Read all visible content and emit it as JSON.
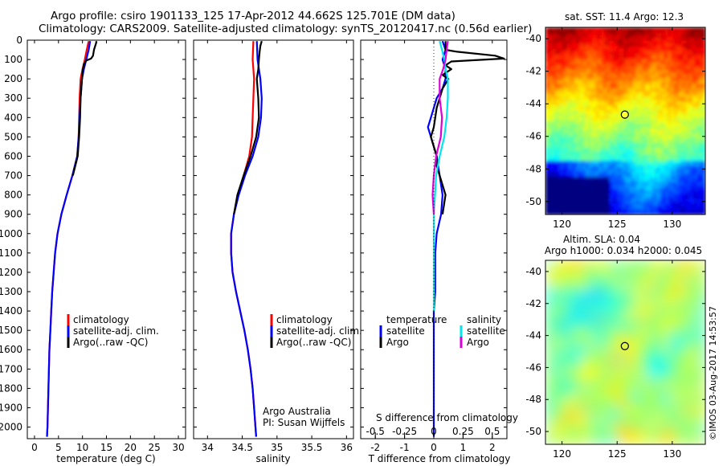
{
  "title": {
    "line1": "Argo profile: csiro 1901133_125 17-Apr-2012 44.662S 125.701E (DM data)",
    "line2": "Climatology: CARS2009. Satellite-adjusted climatology: synTS_20120417.nc (0.56d earlier)"
  },
  "colors": {
    "climatology": "#ff0000",
    "satellite": "#0000ff",
    "argo": "#000000",
    "sal_satellite": "#00e5ee",
    "sal_argo": "#dd00dd"
  },
  "depth_axis": {
    "ticks": [
      0,
      100,
      200,
      300,
      400,
      500,
      600,
      700,
      800,
      900,
      1000,
      1100,
      1200,
      1300,
      1400,
      1500,
      1600,
      1700,
      1800,
      1900,
      2000
    ],
    "range": [
      0,
      2060
    ]
  },
  "chart_data": [
    {
      "type": "line",
      "name": "temperature",
      "xlabel": "temperature (deg C)",
      "xlim": [
        -1.5,
        31.5
      ],
      "xticks": [
        0,
        5,
        10,
        15,
        20,
        25,
        30
      ],
      "ylim": [
        0,
        2060
      ],
      "legend": [
        "climatology",
        "satellite-adj. clim.",
        "Argo(..raw -QC)"
      ],
      "series": [
        {
          "name": "climatology",
          "depth": [
            5,
            50,
            100,
            150,
            200,
            300,
            400,
            500,
            600,
            700,
            800,
            900,
            1000,
            1100,
            1200,
            1300,
            1400,
            1500,
            1600,
            1700,
            1800,
            1900,
            2000,
            2050
          ],
          "values": [
            11.3,
            10.9,
            10.5,
            10.0,
            9.6,
            9.4,
            9.3,
            9.2,
            8.9,
            7.9,
            6.7,
            5.6,
            4.8,
            4.3,
            4.0,
            3.7,
            3.5,
            3.3,
            3.1,
            3.0,
            2.9,
            2.8,
            2.7,
            2.6
          ]
        },
        {
          "name": "satellite-adj. clim.",
          "depth": [
            5,
            50,
            100,
            150,
            200,
            300,
            400,
            500,
            600,
            700,
            800,
            900,
            1000,
            1100,
            1200,
            1300,
            1400,
            1500,
            1600,
            1700,
            1800,
            1900,
            2000,
            2050
          ],
          "values": [
            11.6,
            11.3,
            10.8,
            10.3,
            9.9,
            9.6,
            9.4,
            9.2,
            8.9,
            7.9,
            6.7,
            5.6,
            4.8,
            4.3,
            4.0,
            3.7,
            3.5,
            3.3,
            3.1,
            3.0,
            2.9,
            2.8,
            2.7,
            2.6
          ]
        },
        {
          "name": "Argo(..raw -QC)",
          "depth": [
            5,
            10,
            50,
            80,
            95,
            105,
            125,
            150,
            200,
            300,
            400,
            500,
            600,
            700
          ],
          "values": [
            12.8,
            12.9,
            12.4,
            12.2,
            11.8,
            10.8,
            10.3,
            10.1,
            9.9,
            9.6,
            9.5,
            9.3,
            9.0,
            8.0
          ]
        }
      ]
    },
    {
      "type": "line",
      "name": "salinity",
      "xlabel": "salinity",
      "xlim": [
        33.8,
        36.1
      ],
      "xticks": [
        34,
        34.5,
        35,
        35.5,
        36
      ],
      "ylim": [
        0,
        2060
      ],
      "legend": [
        "climatology",
        "satellite-adj. clim.",
        "Argo(..raw -QC)"
      ],
      "annotation": [
        "Argo Australia",
        "PI: Susan Wijffels"
      ],
      "series": [
        {
          "name": "climatology",
          "depth": [
            5,
            100,
            200,
            300,
            400,
            500,
            600,
            700,
            800,
            900,
            1000,
            1100,
            1200,
            1300,
            1400,
            1500,
            1600,
            1700,
            1800,
            1900,
            2000,
            2050
          ],
          "values": [
            34.66,
            34.65,
            34.67,
            34.66,
            34.65,
            34.64,
            34.6,
            34.52,
            34.44,
            34.38,
            34.34,
            34.34,
            34.36,
            34.41,
            34.47,
            34.53,
            34.58,
            34.62,
            34.65,
            34.67,
            34.69,
            34.7
          ]
        },
        {
          "name": "satellite-adj. clim.",
          "depth": [
            5,
            100,
            200,
            300,
            400,
            500,
            600,
            700,
            800,
            900,
            1000,
            1100,
            1200,
            1300,
            1400,
            1500,
            1600,
            1700,
            1800,
            1900,
            2000,
            2050
          ],
          "values": [
            34.71,
            34.72,
            34.76,
            34.78,
            34.77,
            34.73,
            34.65,
            34.54,
            34.45,
            34.38,
            34.34,
            34.34,
            34.36,
            34.41,
            34.47,
            34.53,
            34.58,
            34.62,
            34.65,
            34.67,
            34.69,
            34.7
          ]
        },
        {
          "name": "Argo(..raw -QC)",
          "depth": [
            5,
            30,
            60,
            100,
            150,
            200,
            300,
            400,
            500,
            600,
            700,
            800,
            900
          ],
          "values": [
            34.78,
            34.76,
            34.75,
            34.74,
            34.73,
            34.71,
            34.73,
            34.74,
            34.7,
            34.62,
            34.52,
            34.43,
            34.38
          ]
        }
      ]
    },
    {
      "type": "line",
      "name": "difference",
      "xlabel": "T difference from climatology",
      "toplabel": "S difference from climatology",
      "xlim": [
        -2.5,
        2.5
      ],
      "xticks": [
        -2,
        -1,
        0,
        1,
        2
      ],
      "sticks": [
        -0.5,
        -0.25,
        0,
        0.25,
        0.5
      ],
      "ylim": [
        0,
        2060
      ],
      "legend_temperature": [
        "temperature",
        "satellite",
        "Argo"
      ],
      "legend_salinity": [
        "salinity",
        "satellite",
        "Argo"
      ],
      "series": [
        {
          "name": "T satellite",
          "depth": [
            5,
            50,
            100,
            150,
            200,
            250,
            300,
            350,
            400,
            450,
            500,
            550,
            600,
            700,
            800,
            900,
            1000,
            1100,
            1200,
            1300,
            1400,
            1500,
            1600,
            1700,
            1800,
            1900,
            2000,
            2050
          ],
          "values": [
            0.3,
            0.4,
            0.3,
            0.4,
            0.4,
            0.3,
            0.1,
            0.0,
            -0.1,
            -0.2,
            -0.1,
            0.0,
            0.1,
            0.2,
            0.3,
            0.25,
            0.1,
            0.05,
            0.05,
            0.05,
            0.0,
            0.0,
            0.0,
            0.0,
            0.0,
            0.0,
            0.0,
            0.0
          ]
        },
        {
          "name": "T Argo",
          "depth": [
            5,
            50,
            60,
            80,
            95,
            110,
            130,
            150,
            180,
            200,
            250,
            300,
            350,
            400,
            450,
            500,
            550,
            600,
            650,
            700,
            800,
            900
          ],
          "values": [
            0.4,
            0.4,
            0.8,
            2.1,
            2.4,
            0.6,
            0.4,
            0.6,
            0.3,
            0.5,
            0.3,
            0.2,
            0.1,
            0.05,
            0.0,
            -0.1,
            0.0,
            0.1,
            0.1,
            0.2,
            0.4,
            0.3
          ]
        },
        {
          "name": "S satellite",
          "depth": [
            5,
            50,
            100,
            150,
            200,
            300,
            400,
            500,
            600,
            700,
            800,
            900,
            1000,
            1100,
            1200,
            1300,
            1400
          ],
          "values": [
            0.05,
            0.07,
            0.09,
            0.1,
            0.12,
            0.12,
            0.11,
            0.09,
            0.05,
            0.02,
            0.01,
            0.0,
            0.0,
            0.0,
            0.0,
            0.0,
            0.0
          ]
        },
        {
          "name": "S Argo",
          "depth": [
            5,
            50,
            100,
            150,
            200,
            300,
            400,
            500,
            600,
            700,
            800,
            900
          ],
          "values": [
            0.12,
            0.11,
            0.1,
            0.08,
            0.05,
            0.05,
            0.07,
            0.06,
            0.02,
            0.0,
            -0.01,
            0.0
          ]
        }
      ]
    },
    {
      "type": "heatmap",
      "name": "sst-map",
      "title": "sat. SST: 11.4 Argo: 12.3",
      "xticks": [
        120,
        125,
        130
      ],
      "yticks": [
        -40,
        -42,
        -44,
        -46,
        -48,
        -50
      ],
      "xlim": [
        118.5,
        133
      ],
      "ylim": [
        -50.8,
        -39.3
      ],
      "marker": {
        "lon": 125.7,
        "lat": -44.66
      }
    },
    {
      "type": "heatmap",
      "name": "sla-map",
      "title1": "Altim. SLA: 0.04",
      "title2": "Argo h1000: 0.034 h2000: 0.045",
      "xticks": [
        120,
        125,
        130
      ],
      "yticks": [
        -40,
        -42,
        -44,
        -46,
        -48,
        -50
      ],
      "xlim": [
        118.5,
        133
      ],
      "ylim": [
        -50.8,
        -39.3
      ],
      "marker": {
        "lon": 125.7,
        "lat": -44.66
      }
    }
  ],
  "timestamp": "©IMOS 03-Aug-2017 14:53:57"
}
